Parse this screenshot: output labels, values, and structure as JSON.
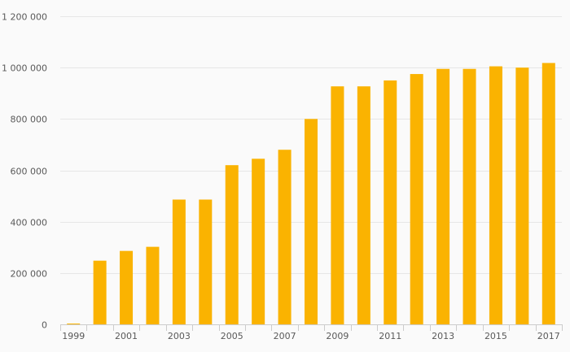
{
  "chart_data": {
    "type": "bar",
    "title": "",
    "xlabel": "",
    "ylabel": "",
    "categories": [
      "1999",
      "2000",
      "2001",
      "2002",
      "2003",
      "2004",
      "2005",
      "2006",
      "2007",
      "2008",
      "2009",
      "2010",
      "2011",
      "2012",
      "2013",
      "2014",
      "2015",
      "2016",
      "2017"
    ],
    "x_tick_labels": [
      "1999",
      "2001",
      "2003",
      "2005",
      "2007",
      "2009",
      "2011",
      "2013",
      "2015",
      "2017"
    ],
    "values": [
      3000,
      248000,
      286000,
      302000,
      486000,
      486000,
      620000,
      645000,
      680000,
      800000,
      927000,
      927000,
      950000,
      975000,
      995000,
      995000,
      1005000,
      1000000,
      1018000
    ],
    "ylim": [
      0,
      1200000
    ],
    "y_ticks": [
      0,
      200000,
      400000,
      600000,
      800000,
      1000000,
      1200000
    ],
    "y_tick_labels": [
      "0",
      "200 000",
      "400 000",
      "600 000",
      "800 000",
      "1 000 000",
      "1 200 000"
    ],
    "grid": true,
    "legend": "none",
    "colors": {
      "bar": "#fab301",
      "grid": "#e6e6e6",
      "axis": "#cccccc",
      "text": "#595959",
      "background": "#fafafa"
    }
  }
}
